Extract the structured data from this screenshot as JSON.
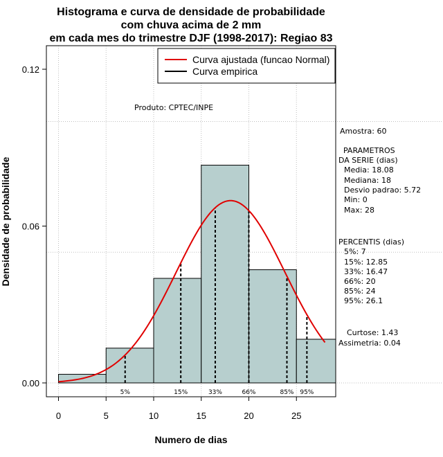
{
  "chart_data": {
    "type": "histogram",
    "title_lines": [
      "Histograma e curva de densidade de probabilidade",
      "com chuva acima de 2 mm",
      "em cada mes do trimestre DJF (1998-2017): Regiao 83"
    ],
    "xlabel": "Numero de dias",
    "ylabel": "Densidade de probabilidade",
    "xlim": [
      -1,
      29
    ],
    "ylim": [
      -0.005,
      0.13
    ],
    "x_ticks": [
      0,
      5,
      10,
      15,
      20,
      25
    ],
    "x_tick_labels": [
      "0",
      "5",
      "10",
      "15",
      "20",
      "25"
    ],
    "y_ticks": [
      0.0,
      0.06,
      0.12
    ],
    "y_tick_labels": [
      "0.00",
      "0.06",
      "0.12"
    ],
    "x_gridlines": [
      0,
      5,
      10,
      15,
      20,
      25
    ],
    "y_gridlines": [
      0.0,
      0.05,
      0.1
    ],
    "bars": [
      {
        "x0": 0,
        "x1": 5,
        "density": 0.0033
      },
      {
        "x0": 5,
        "x1": 10,
        "density": 0.0133
      },
      {
        "x0": 10,
        "x1": 15,
        "density": 0.04
      },
      {
        "x0": 15,
        "x1": 20,
        "density": 0.0833
      },
      {
        "x0": 20,
        "x1": 25,
        "density": 0.0433
      },
      {
        "x0": 25,
        "x1": 30,
        "density": 0.0167
      }
    ],
    "bar_color": "#b7cfce",
    "normal_curve": {
      "mean": 18.08,
      "sd": 5.72,
      "x_from": 0,
      "x_to": 28,
      "color": "#e00000"
    },
    "percentile_lines": [
      {
        "label": "5%",
        "x": 7
      },
      {
        "label": "15%",
        "x": 12.85
      },
      {
        "label": "33%",
        "x": 16.47
      },
      {
        "label": "66%",
        "x": 20
      },
      {
        "label": "85%",
        "x": 24
      },
      {
        "label": "95%",
        "x": 26.1
      }
    ],
    "legend": [
      {
        "label": "Curva ajustada (funcao Normal)",
        "color": "#e00000"
      },
      {
        "label": "Curva empirica",
        "color": "#000000"
      }
    ],
    "legend_position": "top-right",
    "source_text": "Produto: CPTEC/INPE",
    "stats_panel": [
      "Amostra: 60",
      "PARAMETROS",
      "DA SERIE (dias)",
      "Media: 18.08",
      "Mediana: 18",
      "Desvio padrao: 5.72",
      "Min: 0",
      "Max: 28",
      "PERCENTIS (dias)",
      "5%: 7",
      "15%: 12.85",
      "33%: 16.47",
      "66%: 20",
      "85%: 24",
      "95%: 26.1",
      "Curtose: 1.43",
      "Assimetria: 0.04"
    ]
  }
}
